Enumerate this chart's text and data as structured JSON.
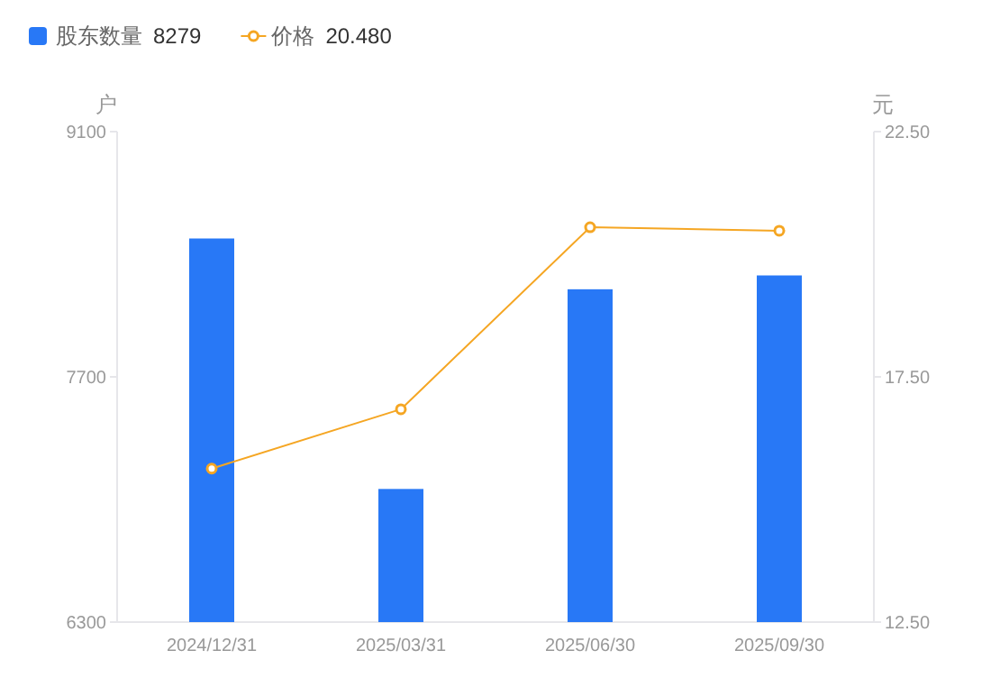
{
  "chart_data": {
    "type": "bar",
    "categories": [
      "2024/12/31",
      "2025/03/31",
      "2025/06/30",
      "2025/09/30"
    ],
    "series": [
      {
        "name": "股东数量",
        "color": "#2878f6",
        "values": [
          8490,
          7060,
          8200,
          8279
        ]
      },
      {
        "name": "价格",
        "type": "line",
        "axis": "y2",
        "color": "#f5a623",
        "marker": "circle",
        "values": [
          15.63,
          16.84,
          20.55,
          20.48
        ]
      }
    ],
    "annotations": [
      "8279",
      "20.480"
    ],
    "ylabel": "户",
    "y2label": "元",
    "ylim": [
      6300,
      9100
    ],
    "yticks": [
      6300,
      7700,
      9100
    ],
    "y2lim": [
      12.5,
      22.5
    ],
    "y2ticks": [
      {
        "value": 12.5,
        "label": "12.50"
      },
      {
        "value": 17.5,
        "label": "17.50"
      },
      {
        "value": 22.5,
        "label": "22.50"
      }
    ],
    "legend": "top left",
    "grid": false
  }
}
